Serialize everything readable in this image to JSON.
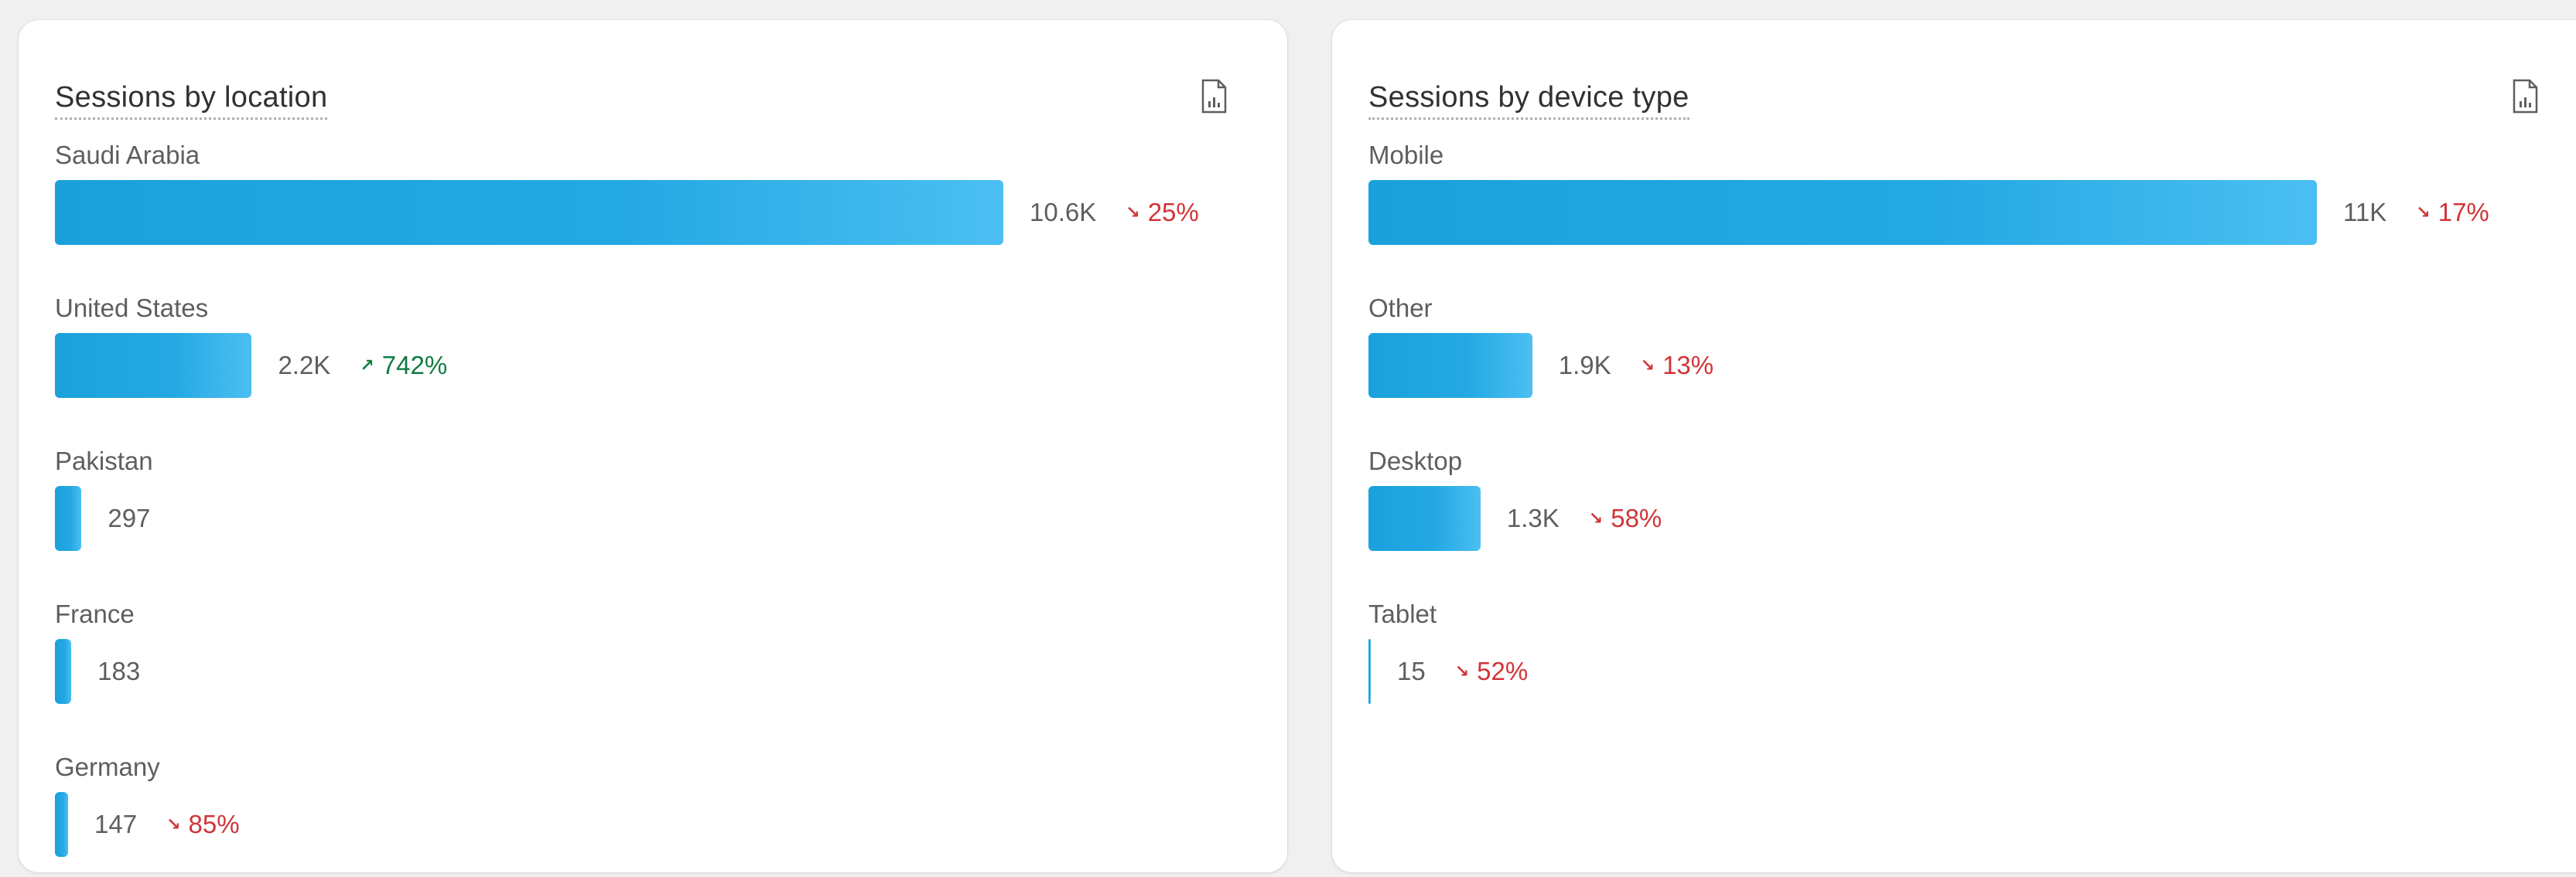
{
  "cards": [
    {
      "title": "Sessions by location",
      "export_icon": "export-report-icon",
      "rows": [
        {
          "label": "Saudi Arabia",
          "value": 10600,
          "value_label": "10.6K",
          "delta": "25%",
          "direction": "down"
        },
        {
          "label": "United States",
          "value": 2200,
          "value_label": "2.2K",
          "delta": "742%",
          "direction": "up"
        },
        {
          "label": "Pakistan",
          "value": 297,
          "value_label": "297",
          "delta": "",
          "direction": ""
        },
        {
          "label": "France",
          "value": 183,
          "value_label": "183",
          "delta": "",
          "direction": ""
        },
        {
          "label": "Germany",
          "value": 147,
          "value_label": "147",
          "delta": "85%",
          "direction": "down"
        }
      ]
    },
    {
      "title": "Sessions by device type",
      "export_icon": "export-report-icon",
      "rows": [
        {
          "label": "Mobile",
          "value": 11000,
          "value_label": "11K",
          "delta": "17%",
          "direction": "down"
        },
        {
          "label": "Other",
          "value": 1900,
          "value_label": "1.9K",
          "delta": "13%",
          "direction": "down"
        },
        {
          "label": "Desktop",
          "value": 1300,
          "value_label": "1.3K",
          "delta": "58%",
          "direction": "down"
        },
        {
          "label": "Tablet",
          "value": 15,
          "value_label": "15",
          "delta": "52%",
          "direction": "down"
        }
      ]
    }
  ],
  "colors": {
    "bar": "#1aa1dc",
    "bar_light": "#4bbff2",
    "delta_down": "#d13438",
    "delta_up": "#107c41",
    "label": "#605e5c",
    "title": "#323130"
  },
  "chart_data": [
    {
      "type": "bar",
      "orientation": "horizontal",
      "title": "Sessions by location",
      "categories": [
        "Saudi Arabia",
        "United States",
        "Pakistan",
        "France",
        "Germany"
      ],
      "values": [
        10600,
        2200,
        297,
        183,
        147
      ],
      "data_labels": [
        "10.6K",
        "2.2K",
        "297",
        "183",
        "147"
      ],
      "change": [
        "25%",
        "742%",
        "",
        "",
        "85%"
      ],
      "change_direction": [
        "down",
        "up",
        "",
        "",
        "down"
      ],
      "grid": false
    },
    {
      "type": "bar",
      "orientation": "horizontal",
      "title": "Sessions by device type",
      "categories": [
        "Mobile",
        "Other",
        "Desktop",
        "Tablet"
      ],
      "values": [
        11000,
        1900,
        1300,
        15
      ],
      "data_labels": [
        "11K",
        "1.9K",
        "1.3K",
        "15"
      ],
      "change": [
        "17%",
        "13%",
        "58%",
        "52%"
      ],
      "change_direction": [
        "down",
        "down",
        "down",
        "down"
      ],
      "grid": false
    }
  ]
}
